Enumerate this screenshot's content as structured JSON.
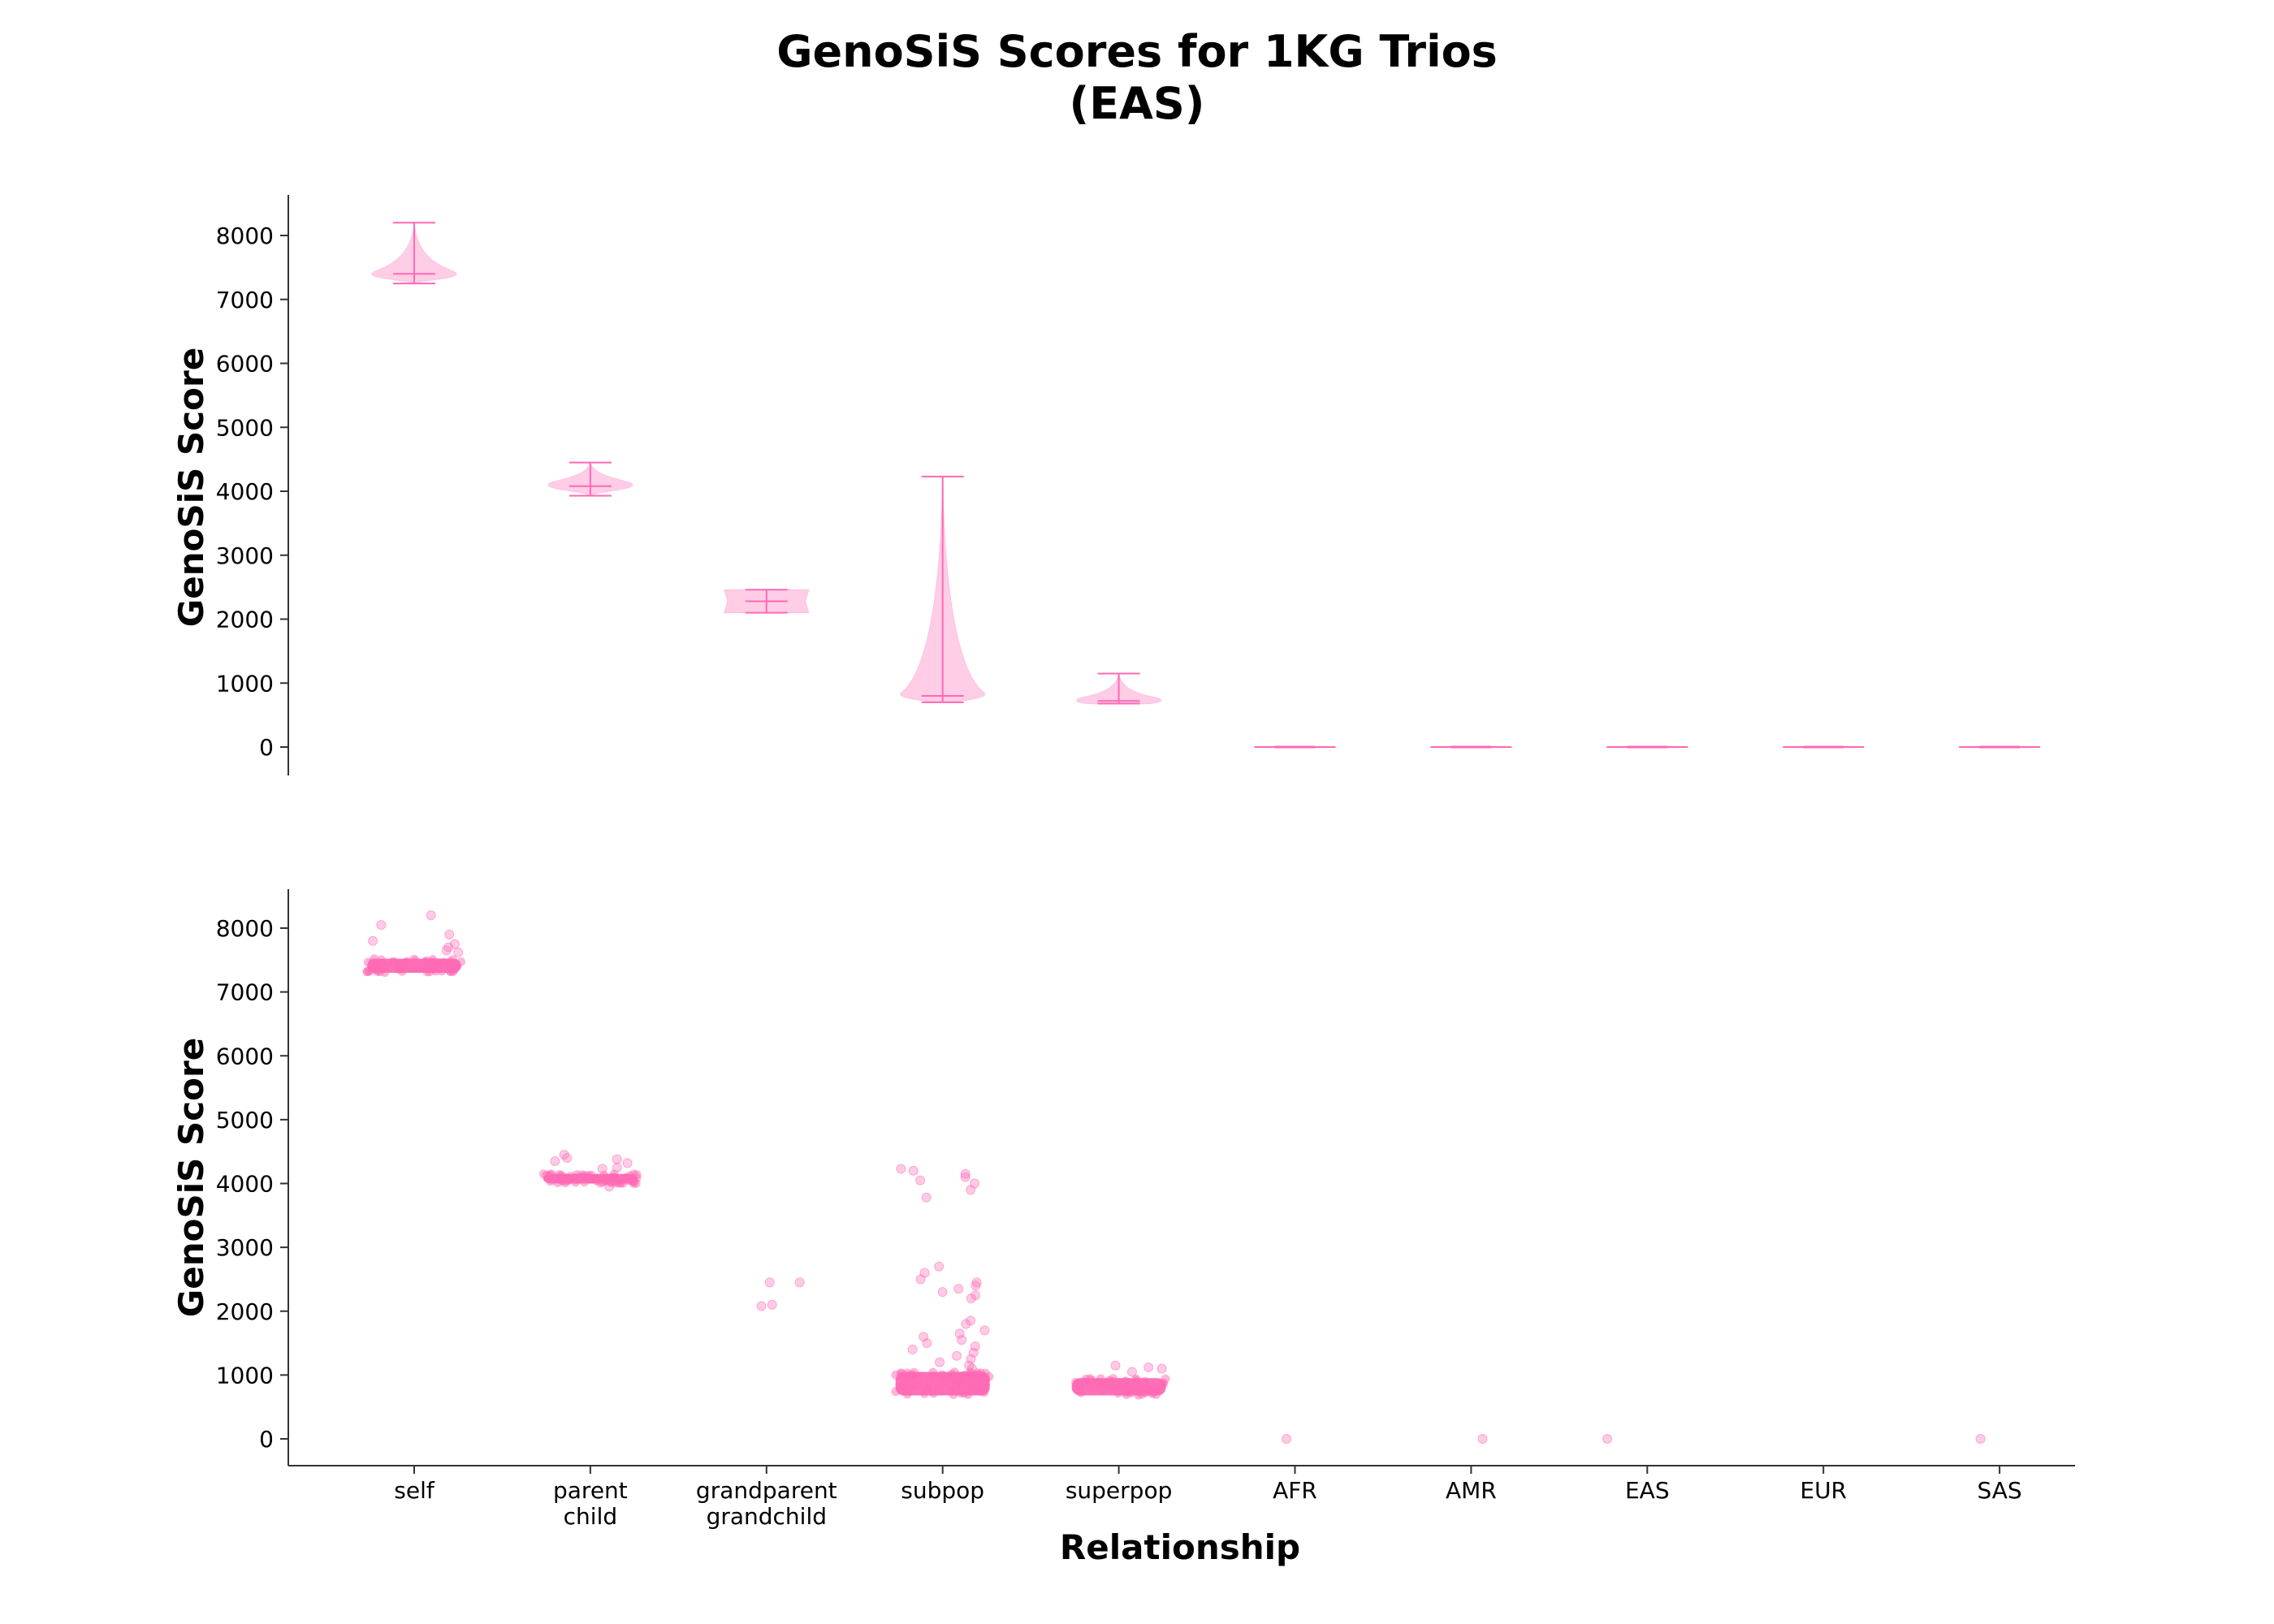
{
  "colors": {
    "accent": "#ff69b4",
    "fill": "#ffc0e0"
  },
  "chart_data": {
    "title": "GenoSiS Scores for 1KG Trios",
    "subtitle": "(EAS)",
    "xlabel": "Relationship",
    "ylabel": "GenoSiS Score",
    "categories": [
      "self",
      "parent\nchild",
      "grandparent\ngrandchild",
      "subpop",
      "superpop",
      "AFR",
      "AMR",
      "EAS",
      "EUR",
      "SAS"
    ],
    "category_lines": [
      [
        "self"
      ],
      [
        "parent",
        "child"
      ],
      [
        "grandparent",
        "grandchild"
      ],
      [
        "subpop"
      ],
      [
        "superpop"
      ],
      [
        "AFR"
      ],
      [
        "AMR"
      ],
      [
        "EAS"
      ],
      [
        "EUR"
      ],
      [
        "SAS"
      ]
    ],
    "ylim": [
      -400,
      8600
    ],
    "yticks": [
      "0",
      "1000",
      "2000",
      "3000",
      "4000",
      "5000",
      "6000",
      "7000",
      "8000"
    ],
    "panels": [
      {
        "type": "violin",
        "series": [
          {
            "category": "self",
            "min": 7250,
            "median": 7400,
            "max": 8200,
            "bulk_low": 7300,
            "bulk_high": 7500
          },
          {
            "category": "parent\nchild",
            "min": 3930,
            "median": 4080,
            "max": 4450,
            "bulk_low": 4000,
            "bulk_high": 4200
          },
          {
            "category": "grandparent\ngrandchild",
            "min": 2100,
            "median": 2280,
            "max": 2460,
            "bulk_low": 2100,
            "bulk_high": 2460
          },
          {
            "category": "subpop",
            "min": 700,
            "median": 800,
            "max": 4230,
            "bulk_low": 700,
            "bulk_high": 950
          },
          {
            "category": "superpop",
            "min": 680,
            "median": 720,
            "max": 1150,
            "bulk_low": 680,
            "bulk_high": 780
          },
          {
            "category": "AFR",
            "min": 0,
            "median": 0,
            "max": 0,
            "bulk_low": 0,
            "bulk_high": 0
          },
          {
            "category": "AMR",
            "min": 0,
            "median": 0,
            "max": 0,
            "bulk_low": 0,
            "bulk_high": 0
          },
          {
            "category": "EAS",
            "min": 0,
            "median": 0,
            "max": 0,
            "bulk_low": 0,
            "bulk_high": 0
          },
          {
            "category": "EUR",
            "min": 0,
            "median": 0,
            "max": 0,
            "bulk_low": 0,
            "bulk_high": 0
          },
          {
            "category": "SAS",
            "min": 0,
            "median": 0,
            "max": 0,
            "bulk_low": 0,
            "bulk_high": 0
          }
        ]
      },
      {
        "type": "strip",
        "series": [
          {
            "category": "self",
            "bulk_low": 7300,
            "bulk_high": 7520,
            "outliers": [
              8050,
              8200,
              7900,
              7800,
              7700,
              7650,
              7620,
              7750
            ]
          },
          {
            "category": "parent\nchild",
            "bulk_low": 4000,
            "bulk_high": 4150,
            "outliers": [
              4450,
              4400,
              4380,
              4350,
              4320,
              4250,
              4230,
              3950
            ]
          },
          {
            "category": "grandparent\ngrandchild",
            "bulk_low": null,
            "bulk_high": null,
            "outliers": [
              2450,
              2080,
              2450,
              2100
            ]
          },
          {
            "category": "subpop",
            "bulk_low": 680,
            "bulk_high": 1050,
            "outliers": [
              4230,
              4200,
              4150,
              4100,
              4050,
              4000,
              3900,
              3780,
              2700,
              2600,
              2500,
              2450,
              2400,
              2350,
              2300,
              2250,
              2200,
              1850,
              1800,
              1700,
              1650,
              1600,
              1550,
              1500,
              1450,
              1400,
              1350,
              1300,
              1250,
              1200,
              1150,
              1100
            ]
          },
          {
            "category": "superpop",
            "bulk_low": 680,
            "bulk_high": 950,
            "outliers": [
              1150,
              1120,
              1100,
              1050
            ]
          },
          {
            "category": "AFR",
            "bulk_low": null,
            "bulk_high": null,
            "outliers": [
              0
            ]
          },
          {
            "category": "AMR",
            "bulk_low": null,
            "bulk_high": null,
            "outliers": [
              0
            ]
          },
          {
            "category": "EAS",
            "bulk_low": null,
            "bulk_high": null,
            "outliers": [
              0
            ]
          },
          {
            "category": "EUR",
            "bulk_low": null,
            "bulk_high": null,
            "outliers": []
          },
          {
            "category": "SAS",
            "bulk_low": null,
            "bulk_high": null,
            "outliers": [
              0
            ]
          }
        ]
      }
    ]
  }
}
